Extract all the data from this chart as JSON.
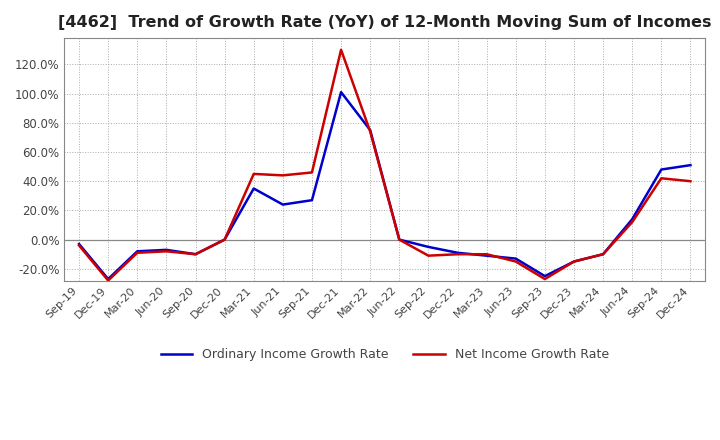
{
  "title": "[4462]  Trend of Growth Rate (YoY) of 12-Month Moving Sum of Incomes",
  "title_fontsize": 11.5,
  "ylim": [
    -0.28,
    1.38
  ],
  "yticks": [
    -0.2,
    0.0,
    0.2,
    0.4,
    0.6,
    0.8,
    1.0,
    1.2
  ],
  "ytick_labels": [
    "-20.0%",
    "0.0%",
    "20.0%",
    "40.0%",
    "60.0%",
    "80.0%",
    "100.0%",
    "120.0%"
  ],
  "background_color": "#ffffff",
  "grid_color": "#aaaaaa",
  "ordinary_color": "#0000cc",
  "net_color": "#cc0000",
  "legend_ordinary": "Ordinary Income Growth Rate",
  "legend_net": "Net Income Growth Rate",
  "dates": [
    "Sep-19",
    "Dec-19",
    "Mar-20",
    "Jun-20",
    "Sep-20",
    "Dec-20",
    "Mar-21",
    "Jun-21",
    "Sep-21",
    "Dec-21",
    "Mar-22",
    "Jun-22",
    "Sep-22",
    "Dec-22",
    "Mar-23",
    "Jun-23",
    "Sep-23",
    "Dec-23",
    "Mar-24",
    "Jun-24",
    "Sep-24",
    "Dec-24"
  ],
  "ordinary_values": [
    -0.03,
    -0.27,
    -0.08,
    -0.07,
    -0.1,
    0.0,
    0.35,
    0.24,
    0.27,
    1.01,
    0.75,
    0.0,
    -0.05,
    -0.09,
    -0.11,
    -0.13,
    -0.25,
    -0.15,
    -0.1,
    0.14,
    0.48,
    0.51
  ],
  "net_values": [
    -0.04,
    -0.28,
    -0.09,
    -0.08,
    -0.1,
    0.0,
    0.45,
    0.44,
    0.46,
    1.3,
    0.74,
    0.0,
    -0.11,
    -0.1,
    -0.1,
    -0.15,
    -0.27,
    -0.15,
    -0.1,
    0.12,
    0.42,
    0.4
  ]
}
